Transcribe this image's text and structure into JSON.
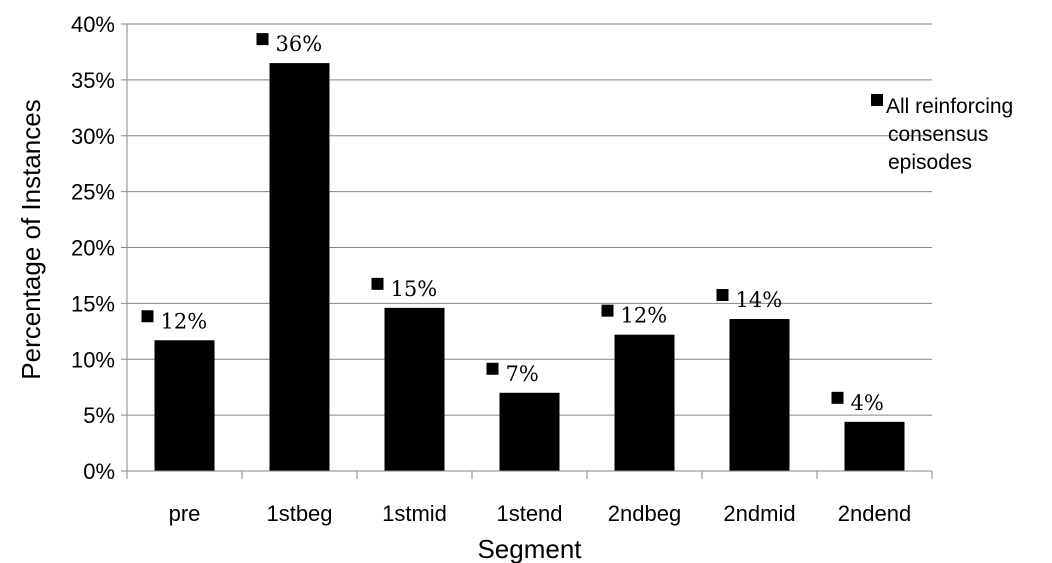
{
  "chart_data": {
    "type": "bar",
    "title": "",
    "xlabel": "Segment",
    "ylabel": "Percentage of Instances",
    "categories": [
      "pre",
      "1stbeg",
      "1stmid",
      "1stend",
      "2ndbeg",
      "2ndmid",
      "2ndend"
    ],
    "series": [
      {
        "name": "All reinforcing consensus episodes",
        "values": [
          11.7,
          36.5,
          14.6,
          7.0,
          12.2,
          13.6,
          4.4
        ],
        "data_labels": [
          "12%",
          "36%",
          "15%",
          "7%",
          "12%",
          "14%",
          "4%"
        ]
      }
    ],
    "ylim": [
      0,
      40
    ],
    "yticks": [
      "0%",
      "5%",
      "10%",
      "15%",
      "20%",
      "25%",
      "30%",
      "35%",
      "40%"
    ],
    "grid": true,
    "legend_position": "right",
    "legend_lines": [
      "All reinforcing",
      "consensus",
      "episodes"
    ],
    "bar_color": "#000000",
    "grid_color": "#868686"
  }
}
